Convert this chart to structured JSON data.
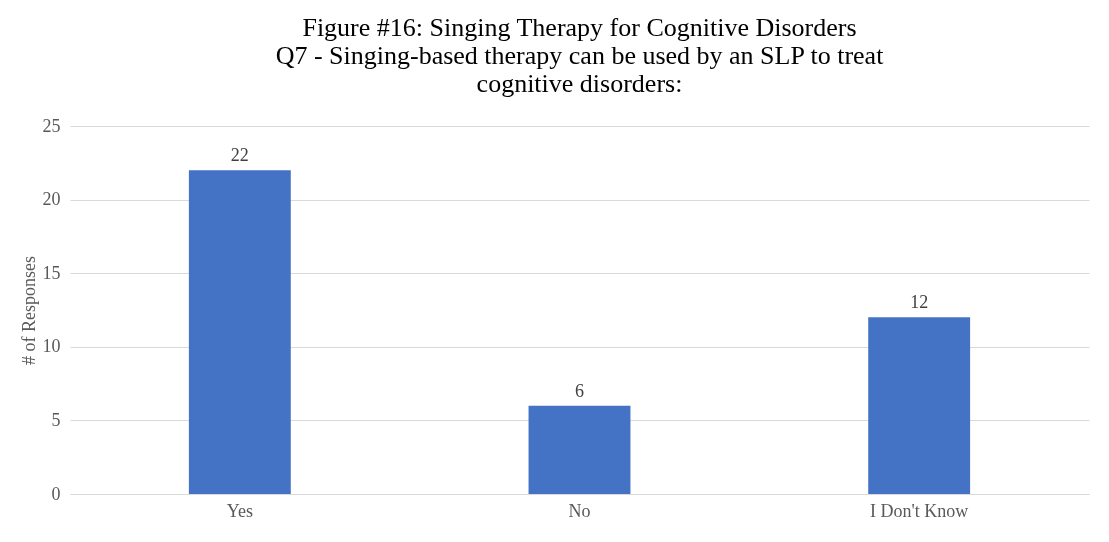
{
  "chart_data": {
    "type": "bar",
    "title": "Figure #16: Singing Therapy for Cognitive Disorders\nQ7 - Singing-based therapy can be used by an SLP to treat\ncognitive disorders:",
    "ylabel": "# of Responses",
    "categories": [
      "Yes",
      "No",
      "I Don't Know"
    ],
    "values": [
      22,
      6,
      12
    ],
    "color": "#4472c4",
    "ylim": [
      0,
      25
    ],
    "yticks": [
      0,
      5,
      10,
      15,
      20,
      25
    ],
    "grid": "y",
    "data_labels": true
  }
}
